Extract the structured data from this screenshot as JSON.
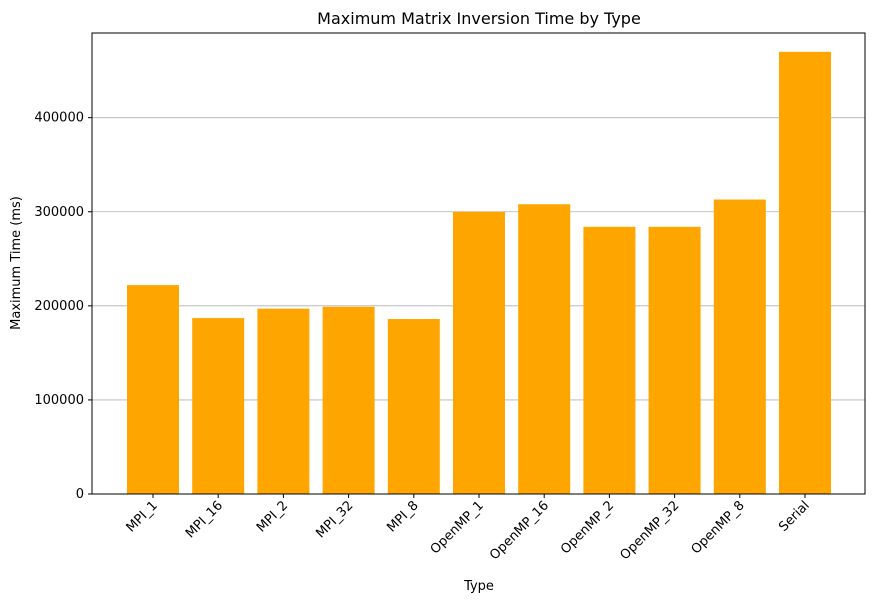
{
  "chart_data": {
    "type": "bar",
    "title": "Maximum Matrix Inversion Time by Type",
    "xlabel": "Type",
    "ylabel": "Maximum Time (ms)",
    "categories": [
      "MPI_1",
      "MPI_16",
      "MPI_2",
      "MPI_32",
      "MPI_8",
      "OpenMP_1",
      "OpenMP_16",
      "OpenMP_2",
      "OpenMP_32",
      "OpenMP_8",
      "Serial"
    ],
    "values": [
      222000,
      187000,
      197000,
      199000,
      186000,
      300000,
      308000,
      284000,
      284000,
      313000,
      470000
    ],
    "ylim": [
      0,
      490000
    ],
    "yticks": [
      0,
      100000,
      200000,
      300000,
      400000
    ],
    "ytick_labels": [
      "0",
      "100000",
      "200000",
      "300000",
      "400000"
    ],
    "grid": "y",
    "legend": "none",
    "bar_color": "#ffa500"
  }
}
